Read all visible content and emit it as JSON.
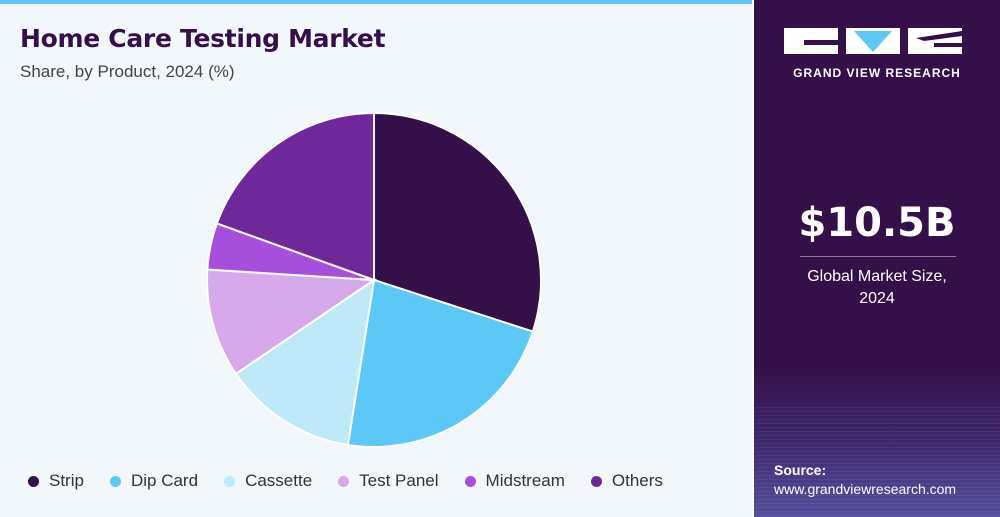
{
  "header": {
    "title": "Home Care Testing Market",
    "subtitle": "Share, by Product, 2024 (%)"
  },
  "sidebar": {
    "brand": "GRAND VIEW RESEARCH",
    "market_value": "$10.5B",
    "market_caption_line1": "Global Market Size,",
    "market_caption_line2": "2024",
    "source_label": "Source:",
    "source_url": "www.grandviewresearch.com"
  },
  "colors": {
    "accent": "#5bc8f5",
    "brand_dark": "#34104a"
  },
  "chart_data": {
    "type": "pie",
    "title": "Home Care Testing Market",
    "subtitle": "Share, by Product, 2024 (%)",
    "categories": [
      "Strip",
      "Dip Card",
      "Cassette",
      "Test Panel",
      "Midstream",
      "Others"
    ],
    "values": [
      30.0,
      22.5,
      13.0,
      10.5,
      4.5,
      19.5
    ],
    "colors": [
      "#34104a",
      "#5bc8f5",
      "#bde9f9",
      "#d6a9ec",
      "#a64fdc",
      "#6f2899"
    ],
    "legend_position": "bottom",
    "start_angle_deg": 0,
    "direction": "clockwise"
  }
}
